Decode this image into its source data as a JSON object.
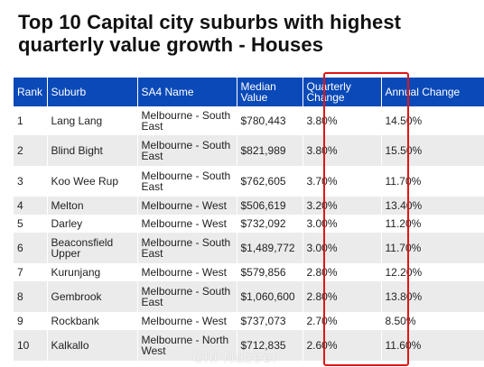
{
  "title": "Top 10 Capital city suburbs with highest quarterly value growth - Houses",
  "columns": {
    "rank": "Rank",
    "suburb": "Suburb",
    "sa4": "SA4 Name",
    "median": "Median Value",
    "qchange": "Quarterly Change",
    "annual": "Annual Change"
  },
  "rows": [
    {
      "rank": "1",
      "suburb": "Lang Lang",
      "sa4": "Melbourne - South East",
      "median": "$780,443",
      "qchange": "3.80%",
      "annual": "14.50%"
    },
    {
      "rank": "2",
      "suburb": "Blind Bight",
      "sa4": "Melbourne - South East",
      "median": "$821,989",
      "qchange": "3.80%",
      "annual": "15.50%"
    },
    {
      "rank": "3",
      "suburb": "Koo Wee Rup",
      "sa4": "Melbourne - South East",
      "median": "$762,605",
      "qchange": "3.70%",
      "annual": "11.70%"
    },
    {
      "rank": "4",
      "suburb": "Melton",
      "sa4": "Melbourne - West",
      "median": "$506,619",
      "qchange": "3.20%",
      "annual": "13.40%"
    },
    {
      "rank": "5",
      "suburb": "Darley",
      "sa4": "Melbourne - West",
      "median": "$732,092",
      "qchange": "3.00%",
      "annual": "11.20%"
    },
    {
      "rank": "6",
      "suburb": "Beaconsfield Upper",
      "sa4": "Melbourne - South East",
      "median": "$1,489,772",
      "qchange": "3.00%",
      "annual": "11.70%"
    },
    {
      "rank": "7",
      "suburb": "Kurunjang",
      "sa4": "Melbourne - West",
      "median": "$579,856",
      "qchange": "2.80%",
      "annual": "12.20%"
    },
    {
      "rank": "8",
      "suburb": "Gembrook",
      "sa4": "Melbourne - South East",
      "median": "$1,060,600",
      "qchange": "2.80%",
      "annual": "13.80%"
    },
    {
      "rank": "9",
      "suburb": "Rockbank",
      "sa4": "Melbourne - West",
      "median": "$737,073",
      "qchange": "2.70%",
      "annual": "8.50%"
    },
    {
      "rank": "10",
      "suburb": "Kalkallo",
      "sa4": "Melbourne - North West",
      "median": "$712,835",
      "qchange": "2.60%",
      "annual": "11.60%"
    }
  ],
  "watermark": "Chi Nazeer",
  "colors": {
    "header_bg": "#0a49b8",
    "highlight_border": "#e01616",
    "stripe": "#ebebeb"
  }
}
